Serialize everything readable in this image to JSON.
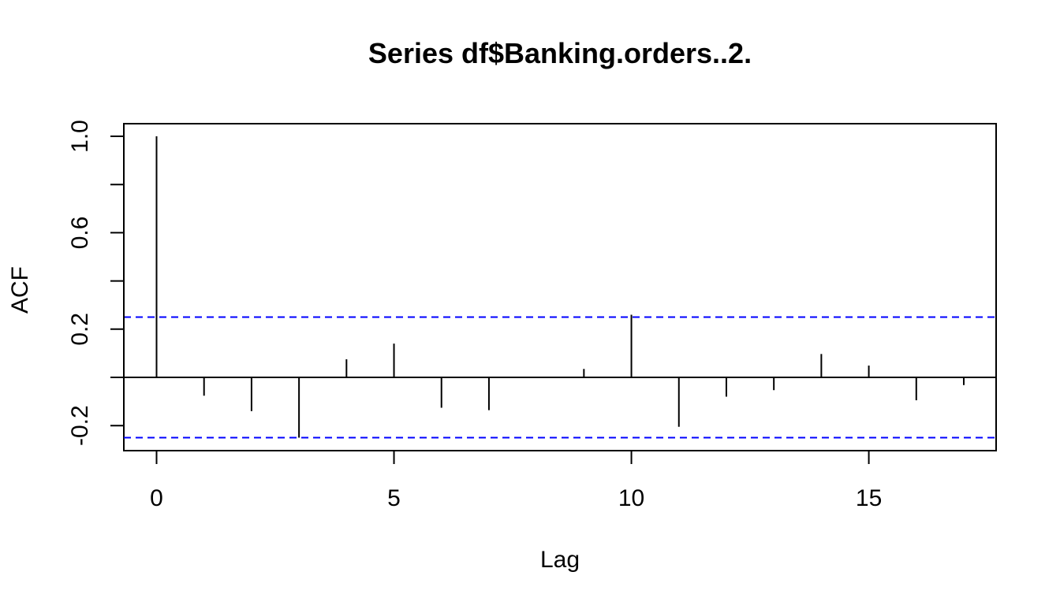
{
  "chart_data": {
    "type": "bar",
    "title": "Series  df$Banking.orders..2.",
    "xlabel": "Lag",
    "ylabel": "ACF",
    "xlim": [
      -0.68,
      17.72
    ],
    "ylim": [
      -0.3,
      1.0
    ],
    "xticks": [
      0,
      5,
      10,
      15
    ],
    "xtick_labels": [
      "0",
      "5",
      "10",
      "15"
    ],
    "yticks": [
      -0.2,
      0.0,
      0.2,
      0.4,
      0.6,
      0.8,
      1.0
    ],
    "ytick_labels": [
      "-0.2",
      "",
      "0.2",
      "",
      "0.6",
      "",
      "1.0"
    ],
    "confidence_bounds": [
      0.25,
      -0.25
    ],
    "confidence_color": "#0000ff",
    "x": [
      0,
      1,
      2,
      3,
      4,
      5,
      6,
      7,
      8,
      9,
      10,
      11,
      12,
      13,
      14,
      15,
      16,
      17
    ],
    "values": [
      1.0,
      -0.076,
      -0.14,
      -0.25,
      0.075,
      0.14,
      -0.126,
      -0.136,
      0.0,
      0.035,
      0.26,
      -0.205,
      -0.08,
      -0.053,
      0.097,
      0.049,
      -0.095,
      -0.032
    ],
    "grid": false,
    "legend": "none"
  }
}
